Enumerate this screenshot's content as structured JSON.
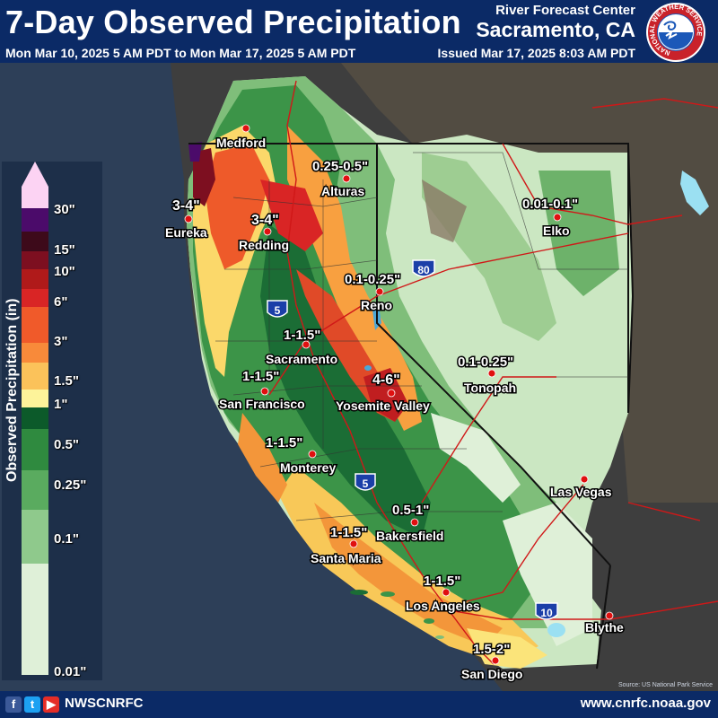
{
  "header": {
    "title": "7-Day Observed Precipitation",
    "subtitle": "Mon Mar 10, 2025 5 AM PDT to Mon Mar 17, 2025 5 AM PDT",
    "rfc_label": "River Forecast Center",
    "rfc_location": "Sacramento, CA",
    "issued": "Issued Mar 17, 2025 8:03 AM PDT",
    "logo_text": "NATIONAL WEATHER SERVICE"
  },
  "legend": {
    "title": "Observed Precipitation (in)",
    "ticks": [
      "30\"",
      "15\"",
      "10\"",
      "6\"",
      "3\"",
      "1.5\"",
      "1\"",
      "0.5\"",
      "0.25\"",
      "0.1\"",
      "0.01\""
    ],
    "colors": [
      "#fcd3f3",
      "#4b0b6a",
      "#3d0a1a",
      "#7d0f20",
      "#b01a1a",
      "#d92525",
      "#f05a2a",
      "#f88a3a",
      "#fbc25a",
      "#fdf39a",
      "#0c5a2a",
      "#2f8a3f",
      "#5aab5f",
      "#8fc98c",
      "#c6e6c0",
      "#e2f3dc"
    ]
  },
  "cities": [
    {
      "name": "Medford"
    },
    {
      "name": "Eureka"
    },
    {
      "name": "Redding"
    },
    {
      "name": "Alturas"
    },
    {
      "name": "Elko"
    },
    {
      "name": "Reno"
    },
    {
      "name": "Sacramento"
    },
    {
      "name": "Tonopah"
    },
    {
      "name": "San Francisco"
    },
    {
      "name": "Yosemite Valley"
    },
    {
      "name": "Monterey"
    },
    {
      "name": "Las Vegas"
    },
    {
      "name": "Bakersfield"
    },
    {
      "name": "Santa Maria"
    },
    {
      "name": "Los Angeles"
    },
    {
      "name": "Blythe"
    },
    {
      "name": "San Diego"
    }
  ],
  "amounts": [
    "3-4\"",
    "3-4\"",
    "0.25-0.5\"",
    "0.01-0.1\"",
    "0.1-0.25\"",
    "1-1.5\"",
    "1-1.5\"",
    "4-6\"",
    "0.1-0.25\"",
    "1-1.5\"",
    "0.5-1\"",
    "1-1.5\"",
    "1-1.5\"",
    "1.5-2\""
  ],
  "highways": [
    "5",
    "80",
    "5",
    "10"
  ],
  "credit": "Source: US National Park Service",
  "footer": {
    "handle": "NWSCNRFC",
    "website": "www.cnrfc.noaa.gov",
    "social_icons": [
      "facebook-icon",
      "twitter-icon",
      "youtube-icon"
    ]
  }
}
